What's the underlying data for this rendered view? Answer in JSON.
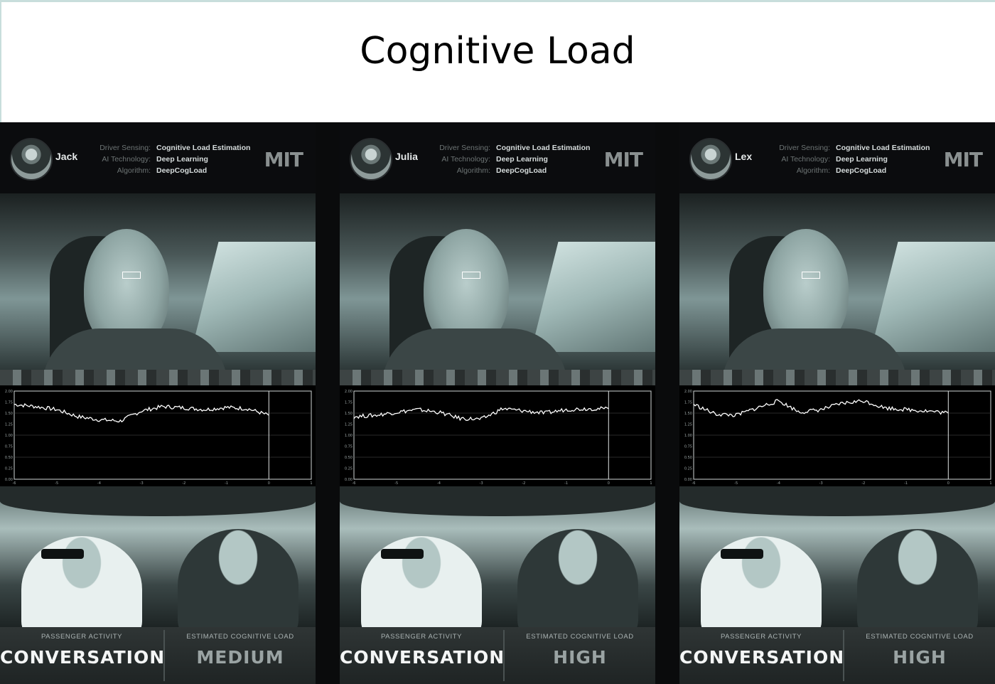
{
  "title": "Cognitive Load",
  "meta_labels": {
    "sensing": "Driver Sensing:",
    "technology": "AI Technology:",
    "algorithm": "Algorithm:"
  },
  "logo_text": "MIT",
  "activity_label": "PASSENGER ACTIVITY",
  "load_label": "ESTIMATED COGNITIVE LOAD",
  "panels": [
    {
      "name": "Jack",
      "sensing": "Cognitive Load Estimation",
      "technology": "Deep Learning",
      "algorithm": "DeepCogLoad",
      "activity": "CONVERSATION",
      "load": "MEDIUM"
    },
    {
      "name": "Julia",
      "sensing": "Cognitive Load Estimation",
      "technology": "Deep Learning",
      "algorithm": "DeepCogLoad",
      "activity": "CONVERSATION",
      "load": "HIGH"
    },
    {
      "name": "Lex",
      "sensing": "Cognitive Load Estimation",
      "technology": "Deep Learning",
      "algorithm": "DeepCogLoad",
      "activity": "CONVERSATION",
      "load": "HIGH"
    }
  ],
  "chart_data": [
    {
      "type": "line",
      "ylim": [
        0,
        2.0
      ],
      "xlim": [
        -6,
        1
      ],
      "yticks": [
        "2.00",
        "1.75",
        "1.50",
        "1.25",
        "1.00",
        "0.75",
        "0.50",
        "0.25",
        "0.00"
      ],
      "xticks": [
        "-6",
        "-5",
        "-4",
        "-3",
        "-2",
        "-1",
        "0",
        "1"
      ],
      "x": [
        -6,
        -5.5,
        -5,
        -4.5,
        -4,
        -3.5,
        -3,
        -2.5,
        -2,
        -1.5,
        -1,
        -0.5,
        0
      ],
      "y": [
        1.7,
        1.65,
        1.58,
        1.42,
        1.35,
        1.32,
        1.55,
        1.65,
        1.62,
        1.58,
        1.63,
        1.6,
        1.45
      ]
    },
    {
      "type": "line",
      "ylim": [
        0,
        2.0
      ],
      "xlim": [
        -6,
        1
      ],
      "yticks": [
        "2.00",
        "1.75",
        "1.50",
        "1.25",
        "1.00",
        "0.75",
        "0.50",
        "0.25",
        "0.00"
      ],
      "xticks": [
        "-6",
        "-5",
        "-4",
        "-3",
        "-2",
        "-1",
        "0",
        "1"
      ],
      "x": [
        -6,
        -5.5,
        -5,
        -4.5,
        -4,
        -3.5,
        -3,
        -2.5,
        -2,
        -1.5,
        -1,
        -0.5,
        0
      ],
      "y": [
        1.42,
        1.45,
        1.52,
        1.58,
        1.52,
        1.38,
        1.36,
        1.6,
        1.55,
        1.5,
        1.58,
        1.6,
        1.6
      ]
    },
    {
      "type": "line",
      "ylim": [
        0,
        2.0
      ],
      "xlim": [
        -6,
        1
      ],
      "yticks": [
        "2.00",
        "1.75",
        "1.50",
        "1.25",
        "1.00",
        "0.75",
        "0.50",
        "0.25",
        "0.00"
      ],
      "xticks": [
        "-6",
        "-5",
        "-4",
        "-3",
        "-2",
        "-1",
        "0",
        "1"
      ],
      "x": [
        -6,
        -5.5,
        -5,
        -4.5,
        -4,
        -3.5,
        -3,
        -2.5,
        -2,
        -1.5,
        -1,
        -0.5,
        0
      ],
      "y": [
        1.7,
        1.48,
        1.45,
        1.62,
        1.78,
        1.52,
        1.58,
        1.72,
        1.78,
        1.62,
        1.58,
        1.55,
        1.5
      ]
    }
  ]
}
